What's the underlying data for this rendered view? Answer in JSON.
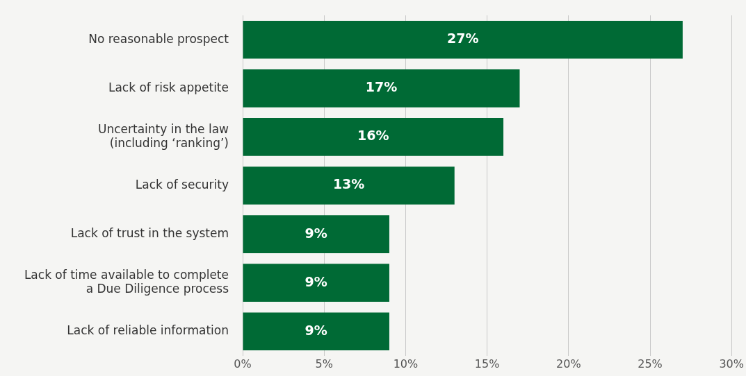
{
  "chart_data": {
    "type": "bar",
    "orientation": "horizontal",
    "categories": [
      "No reasonable prospect",
      "Lack of risk appetite",
      "Uncertainty in the law\n(including ‘ranking’)",
      "Lack of security",
      "Lack of trust in the system",
      "Lack of time available to complete\na Due Diligence process",
      "Lack of reliable information"
    ],
    "values": [
      27,
      17,
      16,
      13,
      9,
      9,
      9
    ],
    "value_labels": [
      "27%",
      "17%",
      "16%",
      "13%",
      "9%",
      "9%",
      "9%"
    ],
    "color": "#006a35",
    "xlim": [
      0,
      30
    ],
    "xticks": [
      {
        "value": 0,
        "label": "0%"
      },
      {
        "value": 5,
        "label": "5%"
      },
      {
        "value": 10,
        "label": "10%"
      },
      {
        "value": 15,
        "label": "15%"
      },
      {
        "value": 20,
        "label": "20%"
      },
      {
        "value": 25,
        "label": "25%"
      },
      {
        "value": 30,
        "label": "30%"
      }
    ],
    "grid": "x",
    "legend": false
  }
}
